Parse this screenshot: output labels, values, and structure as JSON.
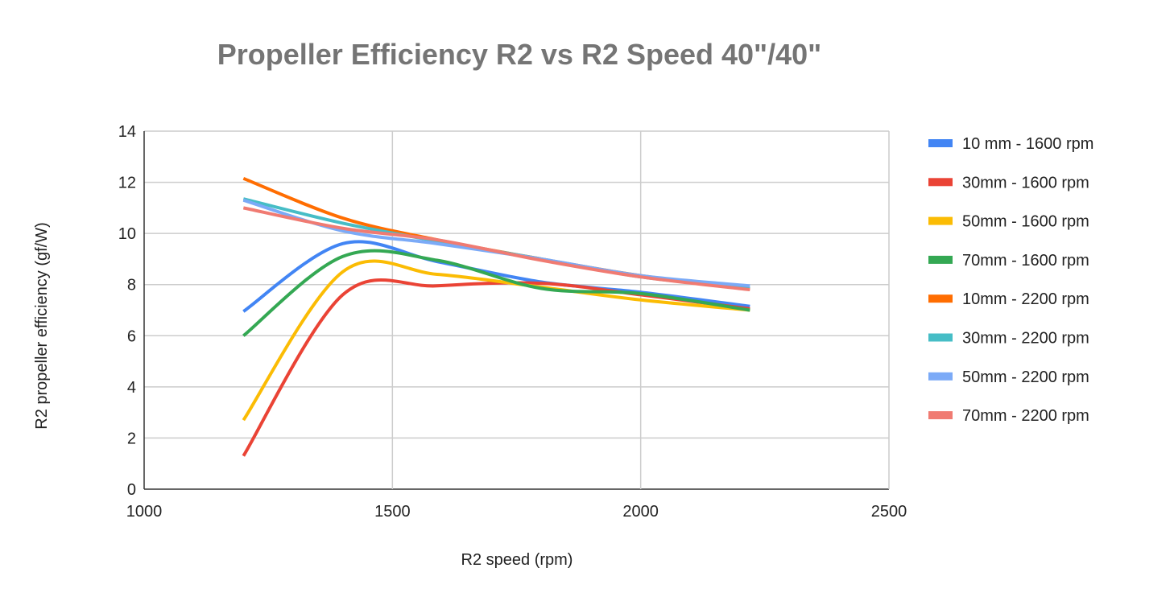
{
  "chart_data": {
    "type": "line",
    "title": "Propeller Efficiency R2 vs R2 Speed 40\"/40\"",
    "xlabel": "R2 speed (rpm)",
    "ylabel": "R2 propeller efficiency (gf/W)",
    "xlim": [
      1000,
      2500
    ],
    "ylim": [
      0,
      14
    ],
    "xticks": [
      1000,
      1500,
      2000,
      2500
    ],
    "yticks": [
      0,
      2,
      4,
      6,
      8,
      10,
      12,
      14
    ],
    "grid": true,
    "smooth": true,
    "legend_position": "right",
    "x": [
      1200,
      1400,
      1590,
      1800,
      2000,
      2220
    ],
    "series": [
      {
        "name": "10 mm - 1600 rpm",
        "color": "#4285f4",
        "values": [
          6.95,
          9.6,
          8.9,
          8.1,
          7.7,
          7.15
        ]
      },
      {
        "name": "30mm - 1600 rpm",
        "color": "#ea4335",
        "values": [
          1.3,
          7.6,
          7.95,
          8.05,
          7.6,
          7.05
        ]
      },
      {
        "name": "50mm - 1600 rpm",
        "color": "#fbbc04",
        "values": [
          2.7,
          8.5,
          8.4,
          7.9,
          7.4,
          7.0
        ]
      },
      {
        "name": "70mm - 1600 rpm",
        "color": "#34a853",
        "values": [
          6.0,
          9.1,
          8.95,
          7.85,
          7.65,
          7.0
        ]
      },
      {
        "name": "10mm - 2200 rpm",
        "color": "#ff6d01",
        "values": [
          12.15,
          10.6,
          9.75,
          9.0,
          8.35,
          7.85
        ]
      },
      {
        "name": "30mm - 2200 rpm",
        "color": "#46bdc6",
        "values": [
          11.35,
          10.4,
          9.7,
          9.0,
          8.3,
          7.85
        ]
      },
      {
        "name": "50mm - 2200 rpm",
        "color": "#7baaf7",
        "values": [
          11.3,
          10.1,
          9.6,
          9.0,
          8.35,
          7.95
        ]
      },
      {
        "name": "70mm - 2200 rpm",
        "color": "#f07b72",
        "values": [
          11.0,
          10.2,
          9.75,
          8.95,
          8.3,
          7.8
        ]
      }
    ]
  }
}
